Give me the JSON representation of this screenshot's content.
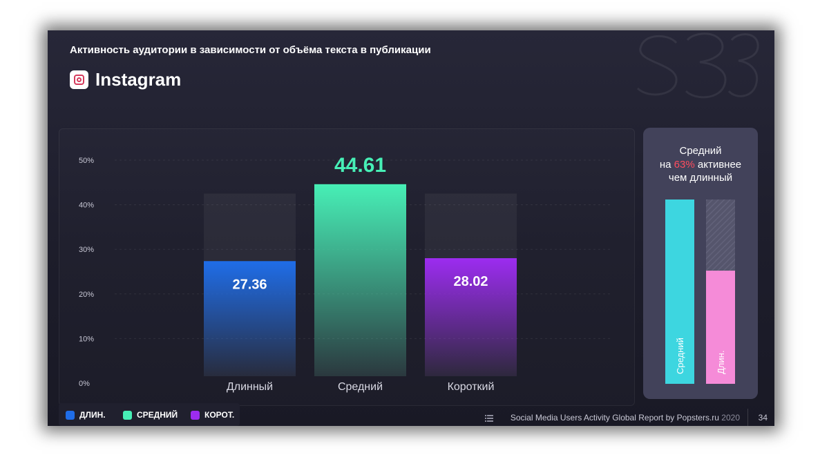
{
  "slide": {
    "subtitle": "Активность аудитории в зависимости от объёма текста в публикации",
    "platform": "Instagram",
    "platform_icon": "instagram-icon"
  },
  "chart_data": {
    "type": "bar",
    "title": "",
    "xlabel": "",
    "ylabel": "",
    "categories": [
      "Длинный",
      "Средний",
      "Короткий"
    ],
    "values": [
      27.36,
      44.61,
      28.02
    ],
    "value_labels": [
      "27.36",
      "44.61",
      "28.02"
    ],
    "y_ticks": [
      "0%",
      "10%",
      "20%",
      "30%",
      "40%",
      "50%"
    ],
    "ylim": [
      0,
      50
    ],
    "grid": true,
    "colors": [
      "#1f6de8",
      "#47efb6",
      "#9c2cf0"
    ]
  },
  "side_card": {
    "line1": "Средний",
    "line2_prefix": "на",
    "line2_accent": "63%",
    "line2_suffix": "активнее",
    "line3": "чем длинный",
    "accent_color": "#ff4d5e",
    "bars": [
      {
        "label": "Средний",
        "value": 1.0,
        "color": "#3dd6e0"
      },
      {
        "label": "Длин.",
        "value": 0.614,
        "color": "#f58bd8"
      }
    ]
  },
  "legend": [
    {
      "label": "ДЛИН.",
      "color": "#1f6de8"
    },
    {
      "label": "СРЕДНИЙ",
      "color": "#47efb6"
    },
    {
      "label": "КОРОТ.",
      "color": "#9c2cf0"
    }
  ],
  "footer": {
    "text": "Social Media Users Activity Global Report by Popsters.ru",
    "year": "2020",
    "page_number": "34"
  }
}
